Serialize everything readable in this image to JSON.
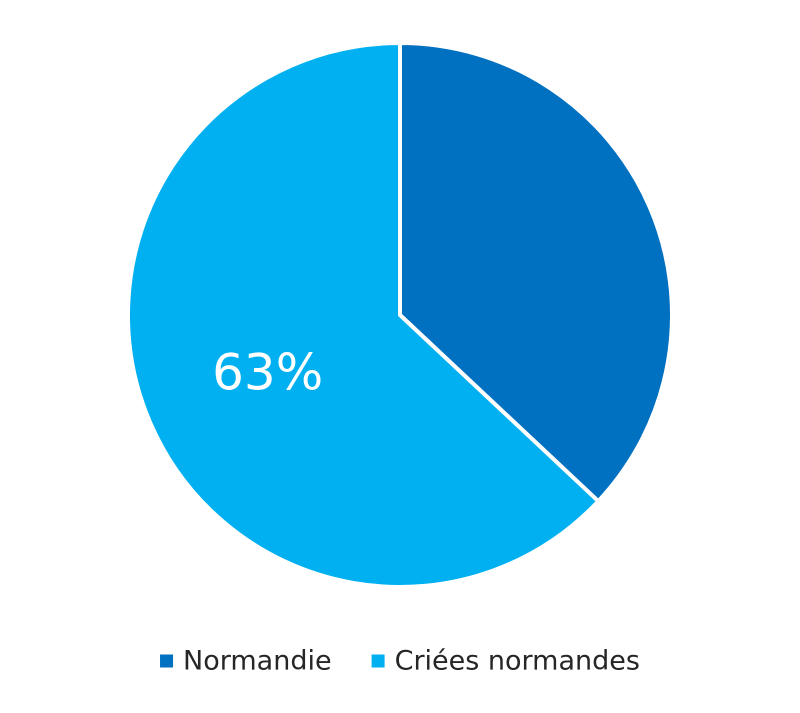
{
  "chart_data": {
    "type": "pie",
    "categories": [
      "Normandie",
      "Criées normandes"
    ],
    "values": [
      37,
      63
    ],
    "data_labels": [
      "",
      "63%"
    ],
    "colors": [
      "#0070C0",
      "#00B0F0"
    ],
    "start_angle_deg": 0,
    "direction": "clockwise",
    "legend_position": "bottom",
    "title": ""
  }
}
